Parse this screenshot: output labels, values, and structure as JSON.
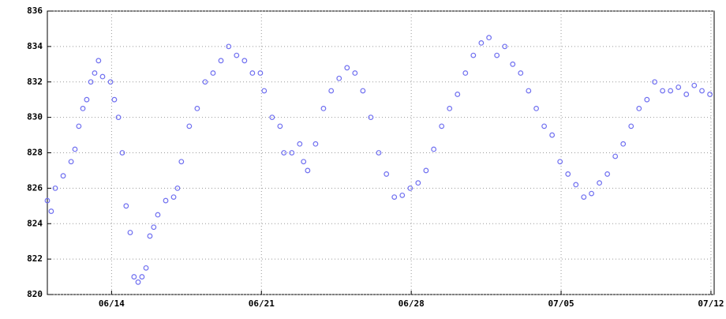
{
  "chart_data": {
    "type": "scatter",
    "color": "#6f6ff0",
    "grid": true,
    "x": [
      11.0,
      11.18,
      11.37,
      11.74,
      12.11,
      12.29,
      12.47,
      12.66,
      12.84,
      13.03,
      13.21,
      13.39,
      13.58,
      13.95,
      14.13,
      14.32,
      14.5,
      14.68,
      14.87,
      15.05,
      15.24,
      15.42,
      15.61,
      15.79,
      15.97,
      16.16,
      16.53,
      16.9,
      17.08,
      17.26,
      17.63,
      18.0,
      18.37,
      18.74,
      19.11,
      19.47,
      19.84,
      20.21,
      20.58,
      20.95,
      21.13,
      21.5,
      21.87,
      22.05,
      22.42,
      22.79,
      22.97,
      23.16,
      23.53,
      23.9,
      24.26,
      24.63,
      25.0,
      25.37,
      25.74,
      26.11,
      26.48,
      26.84,
      27.21,
      27.58,
      27.95,
      28.32,
      28.69,
      29.05,
      29.42,
      29.79,
      30.16,
      30.53,
      30.9,
      31.27,
      31.63,
      32.0,
      32.37,
      32.74,
      33.11,
      33.48,
      33.84,
      34.21,
      34.58,
      34.95,
      35.32,
      35.69,
      36.06,
      36.42,
      36.79,
      37.16,
      37.53,
      37.9,
      38.27,
      38.64,
      39.01,
      39.37,
      39.74,
      40.11,
      40.48,
      40.85,
      41.22,
      41.58,
      41.95
    ],
    "values": [
      825.3,
      824.7,
      826,
      826.7,
      827.5,
      828.2,
      829.5,
      830.5,
      831,
      832,
      832.5,
      833.2,
      832.3,
      832,
      831,
      830,
      828,
      825,
      823.5,
      821,
      820.7,
      821,
      821.5,
      823.3,
      823.8,
      824.5,
      825.3,
      825.5,
      826,
      827.5,
      829.5,
      830.5,
      832,
      832.5,
      833.2,
      834,
      833.5,
      833.2,
      832.5,
      832.5,
      831.5,
      830,
      829.5,
      828,
      828,
      828.5,
      827.5,
      827,
      828.5,
      830.5,
      831.5,
      832.2,
      832.8,
      832.5,
      831.5,
      830,
      828,
      826.8,
      825.5,
      825.6,
      826,
      826.3,
      827,
      828.2,
      829.5,
      830.5,
      831.3,
      832.5,
      833.5,
      834.2,
      834.5,
      833.5,
      834,
      833,
      832.5,
      831.5,
      830.5,
      829.5,
      829,
      827.5,
      826.8,
      826.2,
      825.5,
      825.7,
      826.3,
      826.8,
      827.8,
      828.5,
      829.5,
      830.5,
      831,
      832,
      831.5,
      831.5,
      831.7,
      831.3,
      831.8,
      831.5,
      831.3
    ],
    "xlim": [
      11,
      42.15
    ],
    "xticks": [
      {
        "value": 14,
        "label": "06/14"
      },
      {
        "value": 21,
        "label": "06/21"
      },
      {
        "value": 28,
        "label": "06/28"
      },
      {
        "value": 35,
        "label": "07/05"
      },
      {
        "value": 42,
        "label": "07/12"
      }
    ],
    "ylim": [
      820,
      836
    ],
    "yticks": [
      820,
      822,
      824,
      826,
      828,
      830,
      832,
      834,
      836
    ]
  }
}
